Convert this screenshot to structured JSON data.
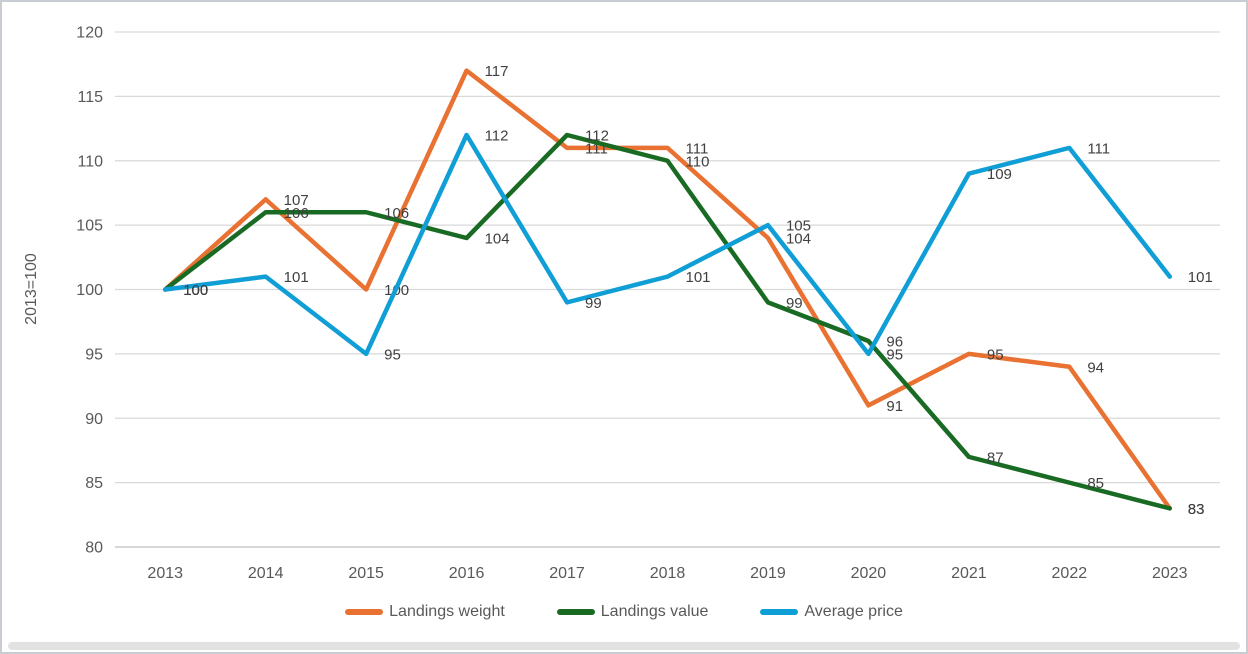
{
  "chart_data": {
    "type": "line",
    "title": "",
    "ylabel": "2013=100",
    "categories": [
      "2013",
      "2014",
      "2015",
      "2016",
      "2017",
      "2018",
      "2019",
      "2020",
      "2021",
      "2022",
      "2023"
    ],
    "series": [
      {
        "name": "Landings weight",
        "color": "#E97132",
        "values": [
          100,
          107,
          100,
          117,
          111,
          111,
          104,
          91,
          95,
          94,
          83
        ]
      },
      {
        "name": "Landings value",
        "color": "#196B24",
        "values": [
          100,
          106,
          106,
          104,
          112,
          110,
          99,
          96,
          87,
          85,
          83
        ]
      },
      {
        "name": "Average price",
        "color": "#0F9ED5",
        "values": [
          100,
          101,
          95,
          112,
          99,
          101,
          105,
          95,
          109,
          111,
          101
        ]
      }
    ],
    "ylim": [
      80,
      120
    ],
    "yticks": [
      80,
      85,
      90,
      95,
      100,
      105,
      110,
      115,
      120
    ],
    "grid": true,
    "data_labels": true,
    "data_label_position": "right",
    "legend_position": "bottom"
  },
  "colors": {
    "background": "#FFFFFF",
    "gridline": "#D9D9D9",
    "axis_line": "#BFBFBF",
    "tick_text": "#595959",
    "data_label_text": "#404040",
    "legend_text": "#595959",
    "frame_border": "#C8CDD4",
    "scrollbar": "#E2E2E2"
  }
}
